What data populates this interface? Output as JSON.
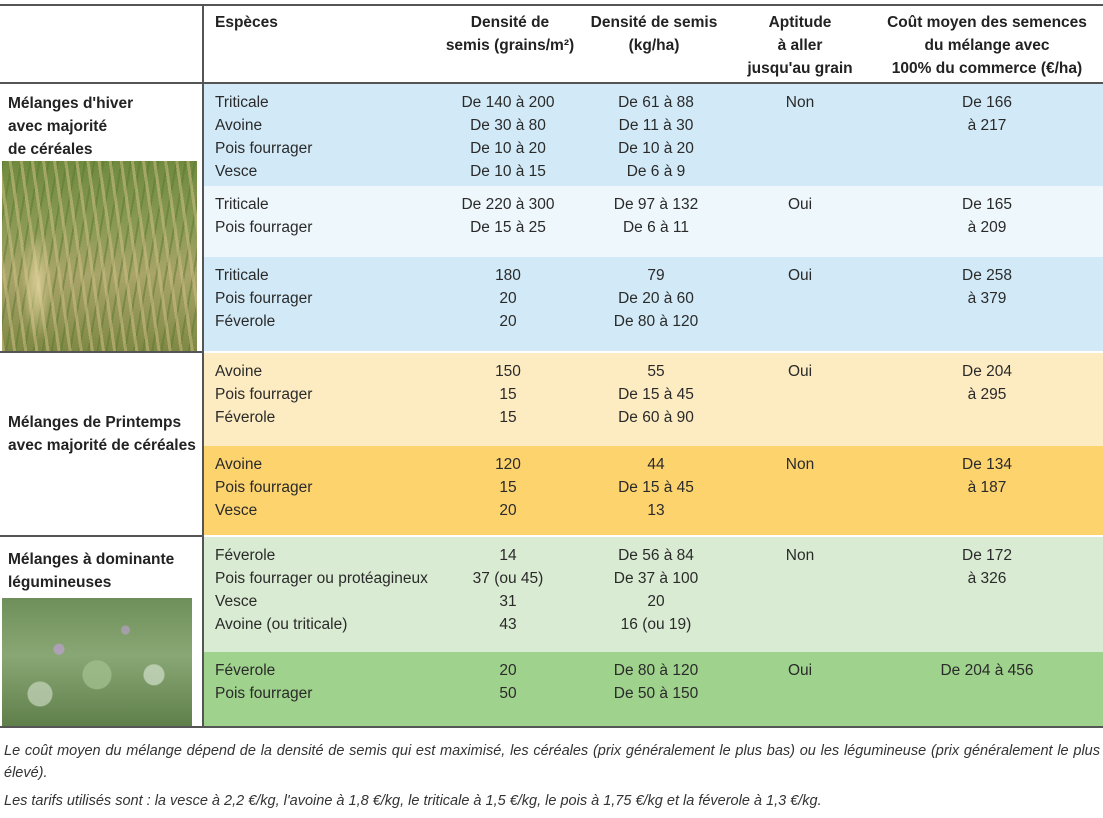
{
  "header": {
    "species": "Espèces",
    "density_grains_line1": "Densité de",
    "density_grains_line2": "semis (grains/m²)",
    "density_kg_line1": "Densité de semis",
    "density_kg_line2": "(kg/ha)",
    "aptitude_line1": "Aptitude",
    "aptitude_line2": "à aller",
    "aptitude_line3": "jusqu'au grain",
    "cost_line1": "Coût moyen des semences",
    "cost_line2": "du mélange avec",
    "cost_line3": "100% du commerce (€/ha)"
  },
  "groups": [
    {
      "label_lines": [
        "Mélanges d'hiver",
        "avec majorité",
        "de céréales"
      ],
      "image": "wheat-field-photo"
    },
    {
      "label_lines": [
        "Mélanges de Printemps",
        "avec majorité de céréales"
      ]
    },
    {
      "label_lines": [
        "Mélanges à dominante",
        "légumineuses"
      ],
      "image": "faba-bean-field-photo"
    }
  ],
  "rows": [
    {
      "color": "#d2eaf7",
      "species": [
        "Triticale",
        "Avoine",
        "Pois fourrager",
        "Vesce"
      ],
      "grains": [
        "De 140 à 200",
        "De 30 à 80",
        "De 10 à 20",
        "De 10 à 15"
      ],
      "kg": [
        "De 61 à 88",
        "De 11 à 30",
        "De 10 à 20",
        "De 6 à 9"
      ],
      "aptitude": [
        "Non"
      ],
      "cost": [
        "De 166",
        "à 217"
      ]
    },
    {
      "color": "#eef7fc",
      "species": [
        "Triticale",
        "Pois fourrager"
      ],
      "grains": [
        "De 220 à 300",
        "De 15 à 25"
      ],
      "kg": [
        "De 97 à 132",
        "De 6 à 11"
      ],
      "aptitude": [
        "Oui"
      ],
      "cost": [
        "De 165",
        "à 209"
      ]
    },
    {
      "color": "#d2eaf7",
      "species": [
        "Triticale",
        "Pois fourrager",
        "Féverole"
      ],
      "grains": [
        "180",
        "20",
        "20"
      ],
      "kg": [
        "79",
        "De 20 à 60",
        "De 80 à 120"
      ],
      "aptitude": [
        "Oui"
      ],
      "cost": [
        "De 258",
        "à 379"
      ]
    },
    {
      "color": "#fdecc2",
      "species": [
        "Avoine",
        "Pois fourrager",
        "Féverole"
      ],
      "grains": [
        "150",
        "15",
        "15"
      ],
      "kg": [
        "55",
        "De 15 à 45",
        "De 60 à 90"
      ],
      "aptitude": [
        "Oui"
      ],
      "cost": [
        "De 204",
        "à 295"
      ]
    },
    {
      "color": "#fdd36e",
      "species": [
        "Avoine",
        "Pois fourrager",
        "Vesce"
      ],
      "grains": [
        "120",
        "15",
        "20"
      ],
      "kg": [
        "44",
        "De 15 à 45",
        "13"
      ],
      "aptitude": [
        "Non"
      ],
      "cost": [
        "De 134",
        "à 187"
      ]
    },
    {
      "color": "#d9ebd2",
      "species": [
        "Féverole",
        "Pois fourrager ou protéagineux",
        "Vesce",
        "Avoine (ou triticale)"
      ],
      "grains": [
        "14",
        "37 (ou 45)",
        "31",
        "43"
      ],
      "kg": [
        "De 56 à 84",
        "De 37 à 100",
        "20",
        "16 (ou 19)"
      ],
      "aptitude": [
        "Non"
      ],
      "cost": [
        "De 172",
        "à 326"
      ]
    },
    {
      "color": "#9fd28c",
      "species": [
        "Féverole",
        "Pois fourrager"
      ],
      "grains": [
        "20",
        "50"
      ],
      "kg": [
        "De 80 à 120",
        "De 50 à 150"
      ],
      "aptitude": [
        "Oui"
      ],
      "cost": [
        "De 204 à 456"
      ]
    }
  ],
  "notes": [
    "Le coût moyen du mélange dépend de la densité de semis qui est maximisé, les céréales (prix généralement le plus bas) ou les légumineuse (prix généralement le plus élevé).",
    "Les tarifs utilisés sont : la vesce à 2,2 €/kg, l'avoine à 1,8 €/kg, le triticale à 1,5 €/kg, le pois à 1,75 €/kg et la féverole à 1,3 €/kg."
  ]
}
